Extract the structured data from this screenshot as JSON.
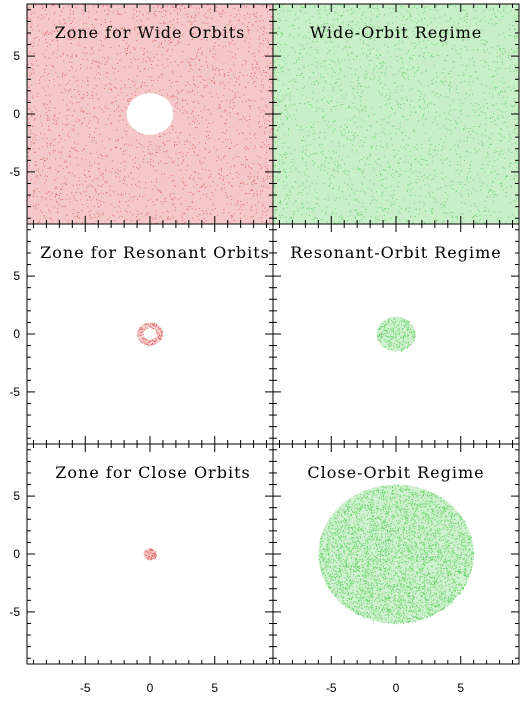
{
  "chart_data": {
    "type": "scatter",
    "layout": "3 rows x 2 columns of panels sharing axes",
    "xlim": [
      -9.5,
      9.5
    ],
    "ylim": [
      -9.5,
      9.5
    ],
    "x_ticks": [
      -5,
      0,
      5
    ],
    "y_ticks": [
      -5,
      0,
      5
    ],
    "x_tick_labels": [
      "-5",
      "0",
      "5"
    ],
    "y_tick_labels": [
      "5",
      "0",
      "-5"
    ],
    "point_color_left": "#e06060",
    "point_color_right": "#60d060",
    "panels": [
      {
        "title": "Zone for Wide Orbits",
        "color": "red",
        "region": "full square with hole",
        "hole_radius": 1.5,
        "outer_radius": null
      },
      {
        "title": "Wide-Orbit Regime",
        "color": "green",
        "region": "full square",
        "hole_radius": 0,
        "outer_radius": null
      },
      {
        "title": "Zone for Resonant Orbits",
        "color": "red",
        "region": "annulus",
        "hole_radius": 0.5,
        "outer_radius": 1.0
      },
      {
        "title": "Resonant-Orbit Regime",
        "color": "green",
        "region": "disk",
        "hole_radius": 0,
        "outer_radius": 1.5
      },
      {
        "title": "Zone for Close Orbits",
        "color": "red",
        "region": "disk",
        "hole_radius": 0,
        "outer_radius": 0.5
      },
      {
        "title": "Close-Orbit Regime",
        "color": "green",
        "region": "disk",
        "hole_radius": 0,
        "outer_radius": 6.0
      }
    ]
  }
}
